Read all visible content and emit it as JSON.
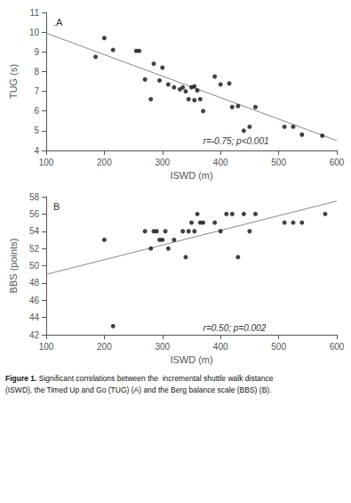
{
  "caption": {
    "label": "Figure 1.",
    "text": "Significant correlations between the  incremental shuttle walk distance\n(ISWD), the Timed Up and Go (TUG) (A) and the Berg balance scale (BBS) (B)."
  },
  "chart_data": [
    {
      "type": "scatter",
      "title": ".A",
      "x": [
        185,
        200,
        215,
        255,
        260,
        270,
        280,
        285,
        295,
        300,
        310,
        320,
        330,
        335,
        340,
        345,
        350,
        355,
        355,
        360,
        365,
        370,
        390,
        400,
        415,
        420,
        430,
        440,
        450,
        460,
        510,
        525,
        540,
        575
      ],
      "values": [
        8.75,
        9.7,
        9.1,
        9.05,
        9.05,
        7.6,
        6.6,
        8.4,
        7.55,
        8.2,
        7.35,
        7.2,
        7.1,
        7.2,
        7.0,
        6.6,
        7.2,
        7.25,
        6.55,
        7.05,
        6.6,
        6.0,
        7.75,
        7.35,
        7.4,
        6.2,
        6.25,
        5.0,
        5.2,
        6.2,
        5.2,
        5.2,
        4.8,
        4.75
      ],
      "color": "#111111",
      "trend": {
        "type": "line",
        "x": [
          100,
          600
        ],
        "values": [
          9.95,
          4.5
        ],
        "color": "#888888"
      },
      "xlabel": "ISWD (m)",
      "ylabel": "TUG (s)",
      "xlim": [
        100,
        600
      ],
      "ylim": [
        4,
        11
      ],
      "xticks": [
        100,
        200,
        300,
        400,
        500,
        600
      ],
      "yticks": [
        4,
        5,
        6,
        7,
        8,
        9,
        10,
        11
      ],
      "annotations": [
        {
          "text": "r=-0.75; p<0.001",
          "x": 370,
          "y": 4.25
        }
      ],
      "grid": false
    },
    {
      "type": "scatter",
      "title": "B",
      "x": [
        200,
        215,
        270,
        280,
        285,
        290,
        295,
        300,
        305,
        310,
        320,
        335,
        340,
        345,
        350,
        355,
        360,
        365,
        370,
        390,
        400,
        410,
        420,
        430,
        440,
        450,
        460,
        510,
        525,
        540,
        580
      ],
      "values": [
        53,
        43,
        54,
        52,
        54,
        54,
        53,
        53,
        54,
        52,
        53,
        54,
        51,
        54,
        55,
        54,
        56,
        55,
        55,
        55,
        54,
        56,
        56,
        51,
        56,
        54,
        56,
        55,
        55,
        55,
        56
      ],
      "color": "#111111",
      "trend": {
        "type": "line",
        "x": [
          100,
          600
        ],
        "values": [
          49.0,
          57.5
        ],
        "color": "#888888"
      },
      "xlabel": "ISWD (m)",
      "ylabel": "BBS (points)",
      "xlim": [
        100,
        600
      ],
      "ylim": [
        42,
        58
      ],
      "xticks": [
        100,
        200,
        300,
        400,
        500,
        600
      ],
      "yticks": [
        42,
        44,
        46,
        48,
        50,
        52,
        54,
        56,
        58
      ],
      "annotations": [
        {
          "text": "r=0.50; p=0.002",
          "x": 370,
          "y": 42.3
        }
      ],
      "grid": false
    }
  ]
}
